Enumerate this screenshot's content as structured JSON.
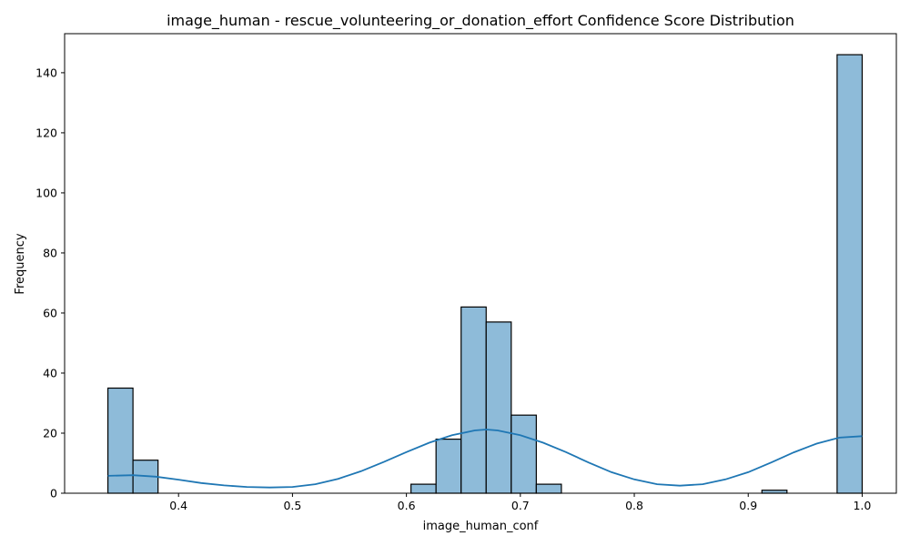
{
  "chart_data": {
    "type": "bar",
    "title": "image_human - rescue_volunteering_or_donation_effort Confidence Score Distribution",
    "xlabel": "image_human_conf",
    "ylabel": "Frequency",
    "xlim": [
      0.3,
      1.03
    ],
    "ylim": [
      0,
      153
    ],
    "xticks": [
      "0.4",
      "0.5",
      "0.6",
      "0.7",
      "0.8",
      "0.9",
      "1.0"
    ],
    "yticks": [
      "0",
      "20",
      "40",
      "60",
      "80",
      "100",
      "120",
      "140"
    ],
    "bar_color": "#8ebbd9",
    "edge_color": "#000000",
    "kde_color": "#1f77b4",
    "bins": [
      {
        "x0": 0.338,
        "x1": 0.36,
        "count": 35
      },
      {
        "x0": 0.36,
        "x1": 0.382,
        "count": 11
      },
      {
        "x0": 0.604,
        "x1": 0.626,
        "count": 3
      },
      {
        "x0": 0.626,
        "x1": 0.648,
        "count": 18
      },
      {
        "x0": 0.648,
        "x1": 0.67,
        "count": 62
      },
      {
        "x0": 0.67,
        "x1": 0.692,
        "count": 57
      },
      {
        "x0": 0.692,
        "x1": 0.714,
        "count": 26
      },
      {
        "x0": 0.714,
        "x1": 0.736,
        "count": 3
      },
      {
        "x0": 0.912,
        "x1": 0.934,
        "count": 1
      },
      {
        "x0": 0.978,
        "x1": 1.0,
        "count": 146
      }
    ],
    "kde": {
      "x": [
        0.338,
        0.36,
        0.38,
        0.4,
        0.42,
        0.44,
        0.46,
        0.48,
        0.5,
        0.52,
        0.54,
        0.56,
        0.58,
        0.6,
        0.62,
        0.64,
        0.66,
        0.67,
        0.68,
        0.7,
        0.72,
        0.74,
        0.76,
        0.78,
        0.8,
        0.82,
        0.84,
        0.86,
        0.88,
        0.9,
        0.92,
        0.94,
        0.96,
        0.98,
        1.0
      ],
      "y": [
        5.8,
        6.0,
        5.5,
        4.5,
        3.4,
        2.6,
        2.1,
        1.9,
        2.1,
        3.0,
        4.8,
        7.3,
        10.4,
        13.7,
        16.8,
        19.3,
        20.9,
        21.2,
        20.9,
        19.3,
        16.8,
        13.7,
        10.2,
        7.0,
        4.6,
        3.0,
        2.5,
        3.0,
        4.6,
        7.0,
        10.2,
        13.6,
        16.5,
        18.5,
        19.0
      ]
    }
  }
}
